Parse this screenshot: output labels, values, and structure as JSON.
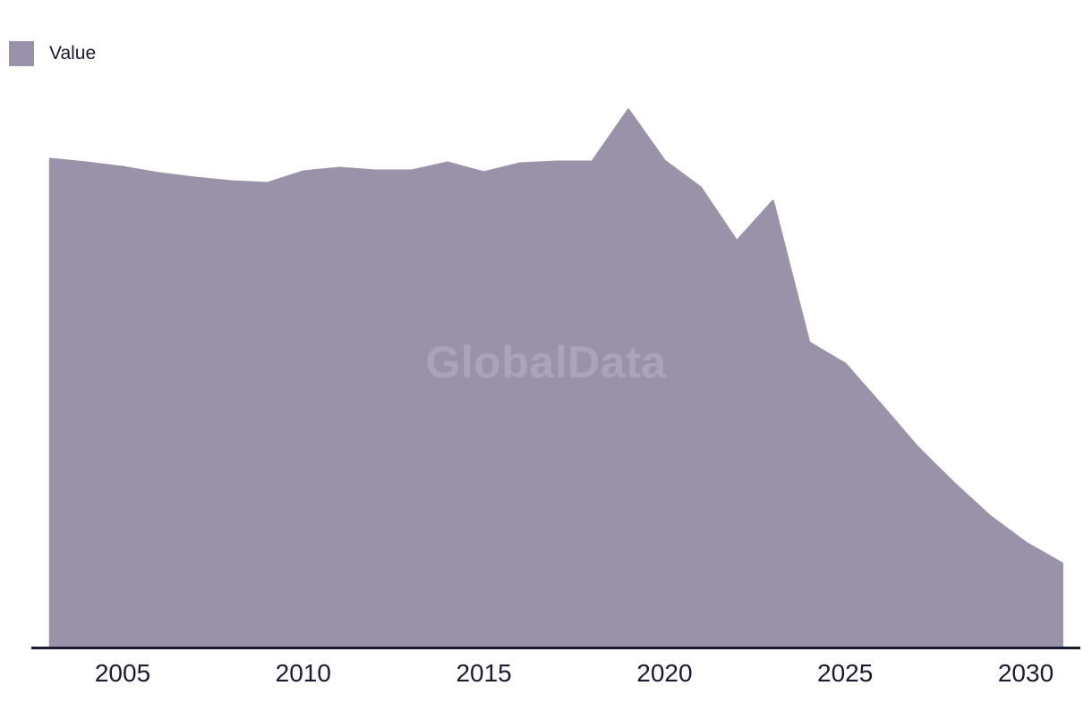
{
  "legend": {
    "label": "Value"
  },
  "watermark": {
    "text": "GlobalData"
  },
  "colors": {
    "background": "#FFFFFF",
    "area_fill": "#9A92A8",
    "watermark_text": "#ABA3B8",
    "axis_line": "#191A30",
    "tick_label": "#1A1B2E",
    "legend_label": "#1A1B2E"
  },
  "x_axis": {
    "tick_labels": [
      "2005",
      "2010",
      "2015",
      "2020",
      "2025",
      "2030"
    ]
  },
  "chart_data": {
    "type": "area",
    "title": "",
    "legend": [
      "Value"
    ],
    "legend_position": "top-left",
    "watermark": "GlobalData",
    "grid": false,
    "y_axis_visible": false,
    "ylim": [
      0,
      650
    ],
    "xlim": [
      2003,
      2031
    ],
    "xticks": [
      2005,
      2010,
      2015,
      2020,
      2025,
      2030
    ],
    "x": [
      2003,
      2004,
      2005,
      2006,
      2007,
      2008,
      2009,
      2010,
      2011,
      2012,
      2013,
      2014,
      2015,
      2016,
      2017,
      2018,
      2019,
      2020,
      2021,
      2022,
      2023,
      2024,
      2025,
      2026,
      2027,
      2028,
      2029,
      2030,
      2031
    ],
    "series": [
      {
        "name": "Value",
        "values": [
          545,
          541,
          536,
          529,
          524,
          520,
          518,
          531,
          535,
          532,
          532,
          541,
          530,
          540,
          542,
          542,
          600,
          543,
          513,
          453,
          498,
          340,
          316,
          270,
          223,
          183,
          146,
          116,
          93
        ]
      }
    ]
  }
}
